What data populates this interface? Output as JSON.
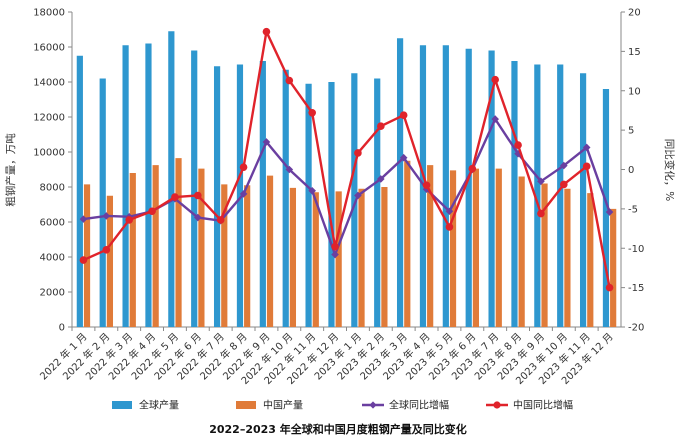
{
  "chart_data": {
    "type": "bar",
    "title": "2022–2023 年全球和中国月度粗钢产量及同比变化",
    "ylabel_left": "粗钢产量，万吨",
    "ylabel_right": "同比变化，%",
    "ylim_left": [
      0,
      18000
    ],
    "ylim_right": [
      -20,
      20
    ],
    "yticks_left": [
      "0",
      "2000",
      "4000",
      "6000",
      "8000",
      "10000",
      "12000",
      "14000",
      "16000",
      "18000"
    ],
    "yticks_right": [
      "-20",
      "-15",
      "-10",
      "-5",
      "0",
      "5",
      "10",
      "15",
      "20"
    ],
    "grid": false,
    "legend_position": "bottom",
    "categories": [
      "2022 年 1 月",
      "2022 年 2 月",
      "2022 年 3 月",
      "2022 年 4 月",
      "2022 年 5 月",
      "2022 年 6 月",
      "2022 年 7 月",
      "2022 年 8 月",
      "2022 年 9 月",
      "2022 年 10 月",
      "2022 年 11 月",
      "2022 年 12 月",
      "2023 年 1 月",
      "2023 年 2 月",
      "2023 年 3 月",
      "2023 年 4 月",
      "2023 年 5 月",
      "2023 年 6 月",
      "2023 年 7 月",
      "2023 年 8 月",
      "2023 年 9 月",
      "2023 年 10 月",
      "2023 年 11 月",
      "2023 年 12 月"
    ],
    "series": [
      {
        "name": "全球产量",
        "kind": "bar",
        "axis": "left",
        "color": "#2e97cf",
        "values": [
          15500,
          14200,
          16100,
          16200,
          16900,
          15800,
          14900,
          15000,
          15200,
          14700,
          13900,
          14000,
          14500,
          14200,
          16500,
          16100,
          16100,
          15900,
          15800,
          15200,
          15000,
          15000,
          14500,
          13600
        ]
      },
      {
        "name": "中国产量",
        "kind": "bar",
        "axis": "left",
        "color": "#e07b39",
        "values": [
          8150,
          7500,
          8800,
          9250,
          9650,
          9050,
          8150,
          8100,
          8650,
          7950,
          7700,
          7750,
          7900,
          8000,
          9500,
          9250,
          8950,
          9050,
          9050,
          8600,
          8200,
          7900,
          7650,
          6750
        ]
      },
      {
        "name": "全球同比增幅",
        "kind": "line",
        "axis": "right",
        "color": "#6a3fa0",
        "values": [
          -6.3,
          -5.9,
          -6.0,
          -5.3,
          -3.7,
          -6.1,
          -6.5,
          -3.1,
          3.5,
          0.0,
          -2.7,
          -10.8,
          -3.3,
          -1.2,
          1.5,
          -2.5,
          -5.3,
          0.0,
          6.4,
          2.0,
          -1.5,
          0.5,
          2.8,
          -5.4
        ]
      },
      {
        "name": "中国同比增幅",
        "kind": "line",
        "axis": "right",
        "color": "#e0232b",
        "values": [
          -11.5,
          -10.2,
          -6.4,
          -5.3,
          -3.5,
          -3.3,
          -6.4,
          0.3,
          17.5,
          11.3,
          7.2,
          -9.8,
          2.1,
          5.5,
          6.9,
          -2.0,
          -7.3,
          0.1,
          11.4,
          3.1,
          -5.6,
          -1.9,
          0.4,
          -15.0
        ]
      }
    ]
  }
}
